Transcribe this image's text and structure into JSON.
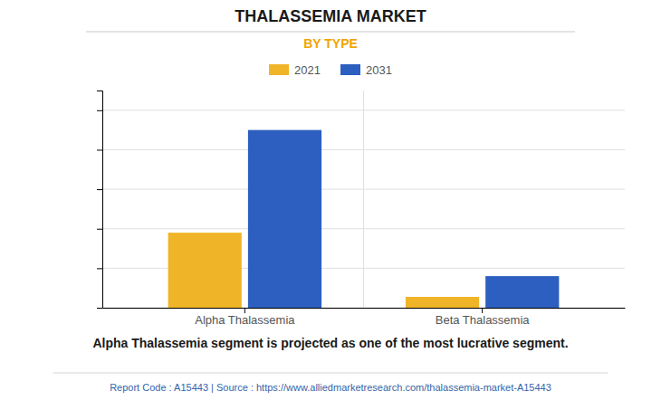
{
  "chart_data": {
    "type": "bar",
    "title": "THALASSEMIA MARKET",
    "subtitle": "BY TYPE",
    "categories": [
      "Alpha Thalassemia",
      "Beta Thalassemia"
    ],
    "series": [
      {
        "name": "2021",
        "color": "#F0B429",
        "values": [
          3.8,
          0.55
        ]
      },
      {
        "name": "2031",
        "color": "#2C5FBF",
        "values": [
          9.0,
          1.6
        ]
      }
    ],
    "ylim": [
      0,
      11
    ],
    "yticks": [
      0,
      2,
      4,
      6,
      8,
      10
    ],
    "grid": true,
    "legend": "top",
    "tick_labels": "x",
    "annotations": [
      "Alpha Thalassemia segment is projected as one of the most lucrative segment.",
      "Report Code : A15443  |  Source : https://www.alliedmarketresearch.com/thalassemia-market-A15443"
    ]
  }
}
